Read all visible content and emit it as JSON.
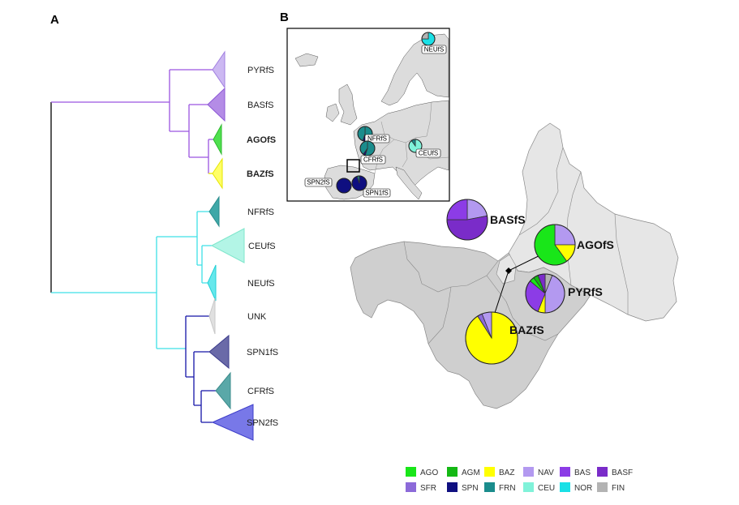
{
  "panels": {
    "a": "A",
    "b": "B"
  },
  "colors": {
    "AGO": "#19e619",
    "AGM": "#14b814",
    "BAZ": "#ffff00",
    "NAV": "#b399f0",
    "BAS": "#8c3ce6",
    "BASF": "#7a2cc9",
    "SFR": "#8c6ad9",
    "SPN": "#0f0f80",
    "FRN": "#1a8c8c",
    "CEU": "#80f2d9",
    "NOR": "#19e0e6",
    "FIN": "#b3b3b3"
  },
  "legend": {
    "row1": [
      "AGO",
      "AGM",
      "BAZ",
      "NAV",
      "BAS",
      "BASF"
    ],
    "row2": [
      "SFR",
      "SPN",
      "FRN",
      "CEU",
      "NOR",
      "FIN"
    ]
  },
  "chart_data": [
    {
      "type": "tree",
      "panel": "A",
      "tips": [
        {
          "label": "PYRfS",
          "bold": false,
          "color": "#ccb8f2",
          "edge": "#a07ee0"
        },
        {
          "label": "BASfS",
          "bold": false,
          "color": "#b48ce6",
          "edge": "#8c56d6"
        },
        {
          "label": "AGOfS",
          "bold": true,
          "color": "#4fe04f",
          "edge": "#2eb82e"
        },
        {
          "label": "BAZfS",
          "bold": true,
          "color": "#ffff66",
          "edge": "#e6e600"
        },
        {
          "label": "NFRfS",
          "bold": false,
          "color": "#3fa8a8",
          "edge": "#2a8c8c"
        },
        {
          "label": "CEUfS",
          "bold": false,
          "color": "#b3f5e6",
          "edge": "#80e6cc"
        },
        {
          "label": "NEUfS",
          "bold": false,
          "color": "#66e8ec",
          "edge": "#22d0d6"
        },
        {
          "label": "UNK",
          "bold": false,
          "color": "#e0e0e0",
          "edge": "#c8c8c8"
        },
        {
          "label": "SPN1fS",
          "bold": false,
          "color": "#6a6aa8",
          "edge": "#3c3c8c"
        },
        {
          "label": "CFRfS",
          "bold": false,
          "color": "#5aa8a8",
          "edge": "#3c8c8c"
        },
        {
          "label": "SPN2fS",
          "bold": false,
          "color": "#7878e8",
          "edge": "#3c3cc8"
        }
      ]
    },
    {
      "type": "pie",
      "panel": "B-inset",
      "pies": [
        {
          "label": "NEUfS",
          "slices": [
            {
              "group": "NOR",
              "value": 0.75
            },
            {
              "group": "FIN",
              "value": 0.25
            }
          ]
        },
        {
          "label": "NFRfS",
          "slices": [
            {
              "group": "FRN",
              "value": 0.5
            },
            {
              "group": "SPN",
              "value": 0.05
            },
            {
              "group": "FRN",
              "value": 0.45
            }
          ]
        },
        {
          "label": "CFRfS",
          "slices": [
            {
              "group": "FRN",
              "value": 0.55
            },
            {
              "group": "SPN",
              "value": 0.05
            },
            {
              "group": "FRN",
              "value": 0.4
            }
          ]
        },
        {
          "label": "CEUfS",
          "slices": [
            {
              "group": "CEU",
              "value": 0.9
            },
            {
              "group": "FRN",
              "value": 0.1
            }
          ]
        },
        {
          "label": "SPN2fS",
          "slices": [
            {
              "group": "SPN",
              "value": 1.0
            }
          ]
        },
        {
          "label": "SPN1fS",
          "slices": [
            {
              "group": "SPN",
              "value": 0.95
            },
            {
              "group": "FRN",
              "value": 0.05
            }
          ]
        }
      ]
    },
    {
      "type": "pie",
      "panel": "B-main",
      "pies": [
        {
          "label": "BASfS",
          "slices": [
            {
              "group": "NAV",
              "value": 0.22
            },
            {
              "group": "BASF",
              "value": 0.53
            },
            {
              "group": "BAS",
              "value": 0.25
            }
          ]
        },
        {
          "label": "AGOfS",
          "slices": [
            {
              "group": "NAV",
              "value": 0.25
            },
            {
              "group": "BAZ",
              "value": 0.15
            },
            {
              "group": "AGO",
              "value": 0.6
            }
          ]
        },
        {
          "label": "PYRfS",
          "slices": [
            {
              "group": "FIN",
              "value": 0.06
            },
            {
              "group": "NAV",
              "value": 0.44
            },
            {
              "group": "BAZ",
              "value": 0.06
            },
            {
              "group": "BAS",
              "value": 0.3
            },
            {
              "group": "AGO",
              "value": 0.04
            },
            {
              "group": "AGM",
              "value": 0.04
            },
            {
              "group": "BASF",
              "value": 0.06
            }
          ]
        },
        {
          "label": "BAZfS",
          "slices": [
            {
              "group": "BAZ",
              "value": 0.91
            },
            {
              "group": "SFR",
              "value": 0.03
            },
            {
              "group": "NAV",
              "value": 0.06
            }
          ]
        }
      ]
    }
  ]
}
